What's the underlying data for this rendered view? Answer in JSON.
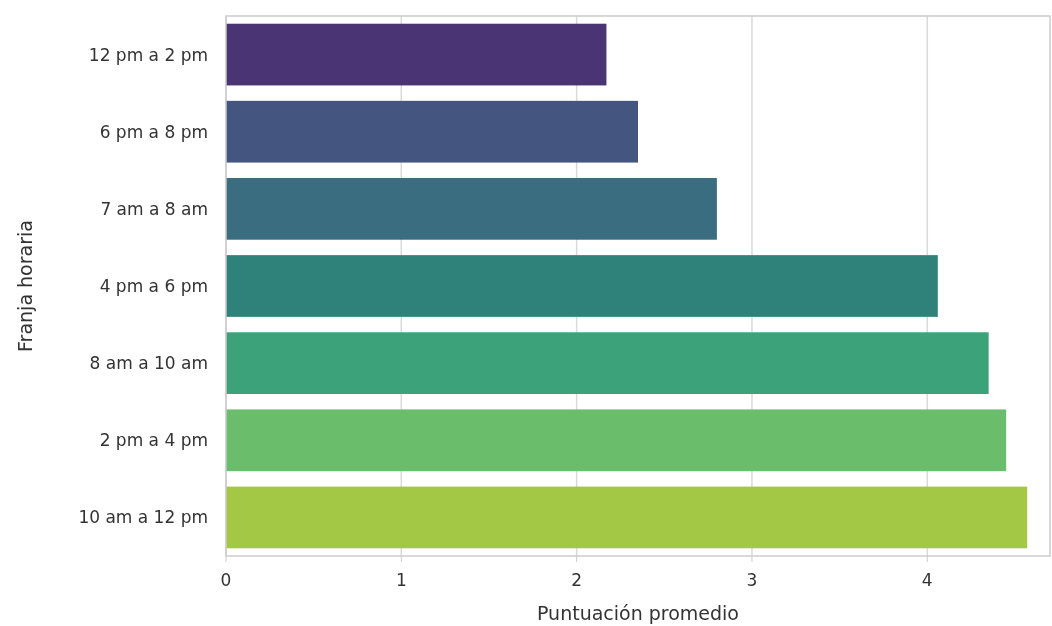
{
  "chart_data": {
    "type": "bar",
    "orientation": "horizontal",
    "xlabel": "Puntuación promedio",
    "ylabel": "Franja horaria",
    "categories": [
      "12 pm a 2 pm",
      "6 pm a 8 pm",
      "7 am a 8 am",
      "4 pm a 6 pm",
      "8 am a 10 am",
      "2 pm a 4 pm",
      "10 am a 12 pm"
    ],
    "values": [
      2.17,
      2.35,
      2.8,
      4.06,
      4.35,
      4.45,
      4.57
    ],
    "colors": [
      "#4a3473",
      "#44557f",
      "#3a6d80",
      "#2e8279",
      "#3ba27a",
      "#6abd6b",
      "#a3c845"
    ],
    "xlim": [
      0,
      4.7
    ],
    "xticks": [
      0,
      1,
      2,
      3,
      4
    ],
    "grid": "x"
  }
}
